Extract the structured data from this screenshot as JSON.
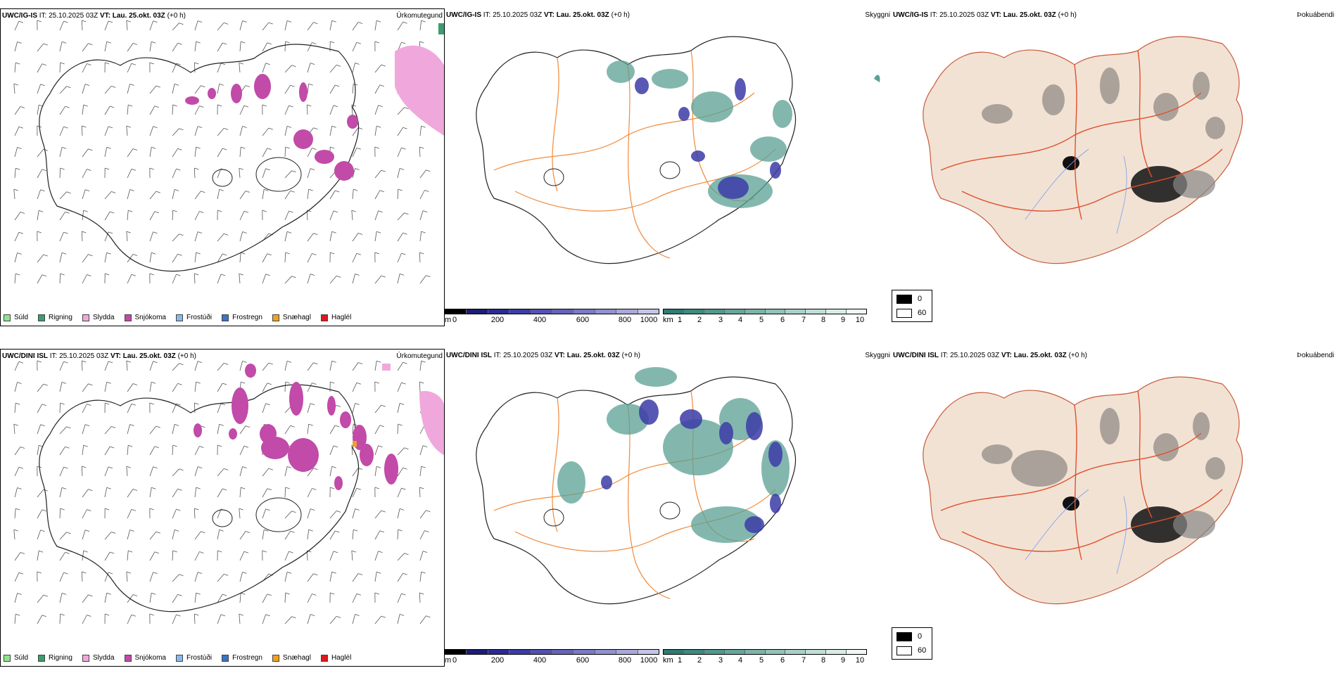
{
  "rows": [
    {
      "model": "UWC/IG-IS",
      "it_label": "IT:",
      "it_value": "25.10.2025 03Z",
      "vt_label": "VT:",
      "vt_value": "Lau. 25.okt. 03Z",
      "lead": "(+0 h)",
      "titles": {
        "precip": "Úrkomutegund",
        "cloud": "Skyggni",
        "fog": "Þokuábendi"
      }
    },
    {
      "model": "UWC/DINI ISL",
      "it_label": "IT:",
      "it_value": "25.10.2025 03Z",
      "vt_label": "VT:",
      "vt_value": "Lau. 25.okt. 03Z",
      "lead": "(+0 h)",
      "titles": {
        "precip": "Úrkomutegund",
        "cloud": "Skyggni",
        "fog": "Þokuábendi"
      }
    }
  ],
  "precip_legend": [
    {
      "label": "Súld",
      "color": "#8fe38f"
    },
    {
      "label": "Rigning",
      "color": "#3a9e6e"
    },
    {
      "label": "Slydda",
      "color": "#f0a8dc"
    },
    {
      "label": "Snjókoma",
      "color": "#c24aa8"
    },
    {
      "label": "Frostúði",
      "color": "#8ab8ec"
    },
    {
      "label": "Frostregn",
      "color": "#3a74c4"
    },
    {
      "label": "Snæhagl",
      "color": "#f0a020"
    },
    {
      "label": "Haglél",
      "color": "#e0181c"
    }
  ],
  "cloudbase_scale": {
    "unit": "m",
    "ticks": [
      "0",
      "200",
      "400",
      "600",
      "800",
      "1000"
    ],
    "colors": [
      "#000000",
      "#1c1c7a",
      "#2a2a96",
      "#3c3ca8",
      "#5252b4",
      "#6464bc",
      "#7a7ac8",
      "#9090d2",
      "#a8a8dc",
      "#c4c4e8"
    ]
  },
  "visibility_scale": {
    "unit": "km",
    "ticks": [
      "1",
      "2",
      "3",
      "4",
      "5",
      "6",
      "7",
      "8",
      "9",
      "10"
    ],
    "colors": [
      "#2e7c72",
      "#3e8a80",
      "#52988e",
      "#66a69c",
      "#7cb4aa",
      "#92c2b8",
      "#a8d0c8",
      "#c0ded6",
      "#d8ece6",
      "#f0f8f4"
    ]
  },
  "fog_key": {
    "high": "0",
    "low": "60"
  },
  "colors": {
    "snow": "#c24aa8",
    "sleet": "#f0a8dc",
    "rain": "#3a9e6e",
    "cloud_blue": "#3c3ca8",
    "visibility_teal": "#5aa094",
    "roads_orange": "#f08a3c",
    "land_tan": "#f2e2d4",
    "roads_red": "#e0502c"
  }
}
